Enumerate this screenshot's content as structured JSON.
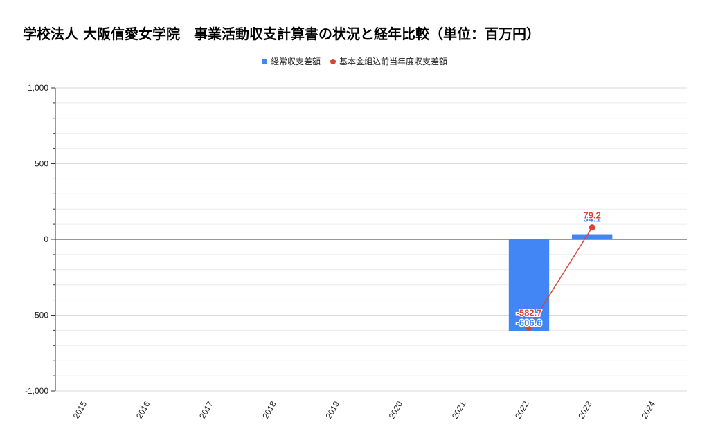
{
  "chart_data": {
    "type": "bar",
    "title": "学校法人 大阪信愛女学院　事業活動収支計算書の状況と経年比較（単位：百万円）",
    "categories": [
      "2015",
      "2016",
      "2017",
      "2018",
      "2019",
      "2020",
      "2021",
      "2022",
      "2023",
      "2024"
    ],
    "ylim": [
      -1000,
      1000
    ],
    "yticks": [
      -1000,
      -500,
      0,
      500,
      1000
    ],
    "ytick_labels": [
      "-1,000",
      "-500",
      "0",
      "500",
      "1,000"
    ],
    "grid": true,
    "legend_position": "top",
    "series": [
      {
        "name": "経常収支差額",
        "kind": "bar",
        "color": "#4285f4",
        "values": [
          null,
          null,
          null,
          null,
          null,
          null,
          null,
          -606.6,
          34.1,
          null
        ],
        "labels": [
          null,
          null,
          null,
          null,
          null,
          null,
          null,
          "-606.6",
          "34.1",
          null
        ]
      },
      {
        "name": "基本金組込前当年度収支差額",
        "kind": "line",
        "color": "#db4437",
        "values": [
          null,
          null,
          null,
          null,
          null,
          null,
          null,
          -582.7,
          79.2,
          null
        ],
        "labels": [
          null,
          null,
          null,
          null,
          null,
          null,
          null,
          "-582.7",
          "79.2",
          null
        ]
      }
    ]
  }
}
